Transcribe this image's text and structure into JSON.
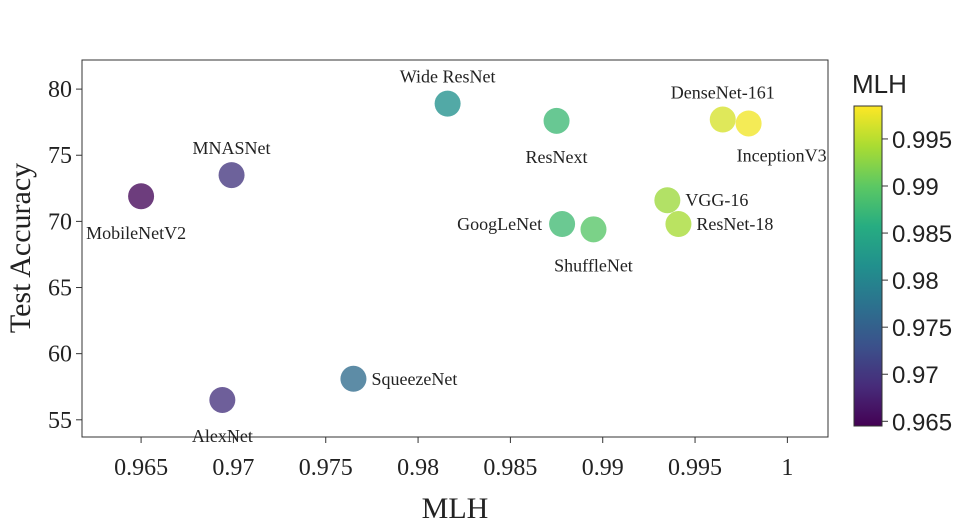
{
  "chart_data": {
    "type": "scatter",
    "title": "",
    "xlabel": "MLH",
    "ylabel": "Test Accuracy",
    "xlim": [
      0.9618,
      1.0022
    ],
    "ylim": [
      53.7,
      82.2
    ],
    "xticks": [
      0.965,
      0.97,
      0.975,
      0.98,
      0.985,
      0.99,
      0.995,
      1
    ],
    "xtick_labels": [
      "0.965",
      "0.97",
      "0.975",
      "0.98",
      "0.985",
      "0.99",
      "0.995",
      "1"
    ],
    "yticks": [
      55,
      60,
      65,
      70,
      75,
      80
    ],
    "ytick_labels": [
      "55",
      "60",
      "65",
      "70",
      "75",
      "80"
    ],
    "grid": false,
    "colorbar": {
      "title": "MLH",
      "colormap": "viridis",
      "range": [
        0.9645,
        0.9985
      ],
      "ticks": [
        0.965,
        0.97,
        0.975,
        0.98,
        0.985,
        0.99,
        0.995
      ],
      "tick_labels": [
        "0.965",
        "0.97",
        "0.975",
        "0.98",
        "0.985",
        "0.99",
        "0.995"
      ]
    },
    "points": [
      {
        "name": "MobileNetV2",
        "x": 0.965,
        "y": 71.9,
        "label_pos": "below-left"
      },
      {
        "name": "MNASNet",
        "x": 0.9699,
        "y": 73.5,
        "label_pos": "above"
      },
      {
        "name": "AlexNet",
        "x": 0.9694,
        "y": 56.5,
        "label_pos": "below"
      },
      {
        "name": "SqueezeNet",
        "x": 0.9765,
        "y": 58.1,
        "label_pos": "right"
      },
      {
        "name": "Wide ResNet",
        "x": 0.9816,
        "y": 78.9,
        "label_pos": "above"
      },
      {
        "name": "ResNext",
        "x": 0.9875,
        "y": 77.6,
        "label_pos": "below"
      },
      {
        "name": "GoogLeNet",
        "x": 0.9878,
        "y": 69.8,
        "label_pos": "left"
      },
      {
        "name": "ShuffleNet",
        "x": 0.9895,
        "y": 69.4,
        "label_pos": "below"
      },
      {
        "name": "VGG-16",
        "x": 0.9935,
        "y": 71.6,
        "label_pos": "right"
      },
      {
        "name": "ResNet-18",
        "x": 0.9941,
        "y": 69.8,
        "label_pos": "right"
      },
      {
        "name": "DenseNet-161",
        "x": 0.9965,
        "y": 77.7,
        "label_pos": "above"
      },
      {
        "name": "InceptionV3",
        "x": 0.9979,
        "y": 77.4,
        "label_pos": "below-right"
      }
    ]
  }
}
